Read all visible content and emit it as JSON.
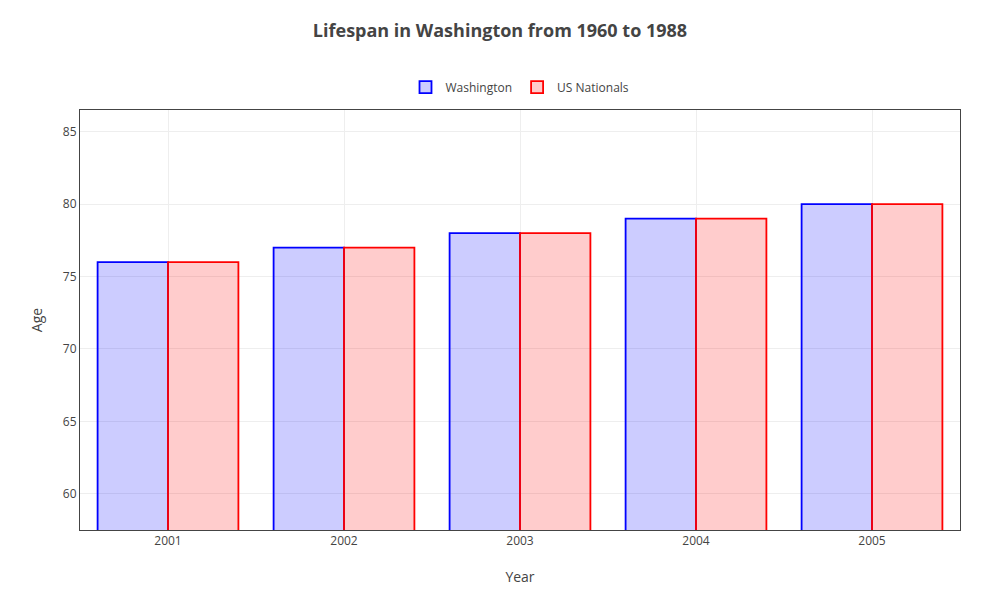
{
  "chart_data": {
    "type": "bar",
    "title": "Lifespan in Washington from 1960 to 1988",
    "xlabel": "Year",
    "ylabel": "Age",
    "categories": [
      "2001",
      "2002",
      "2003",
      "2004",
      "2005"
    ],
    "series": [
      {
        "name": "Washington",
        "color": "#0000ff",
        "values": [
          76,
          77,
          78,
          79,
          80
        ]
      },
      {
        "name": "US Nationals",
        "color": "#ff0000",
        "values": [
          76,
          77,
          78,
          79,
          80
        ]
      }
    ],
    "ylim": [
      57.5,
      86.5
    ],
    "yticks": [
      60,
      65,
      70,
      75,
      80,
      85
    ],
    "grid": true,
    "legend": "top"
  }
}
